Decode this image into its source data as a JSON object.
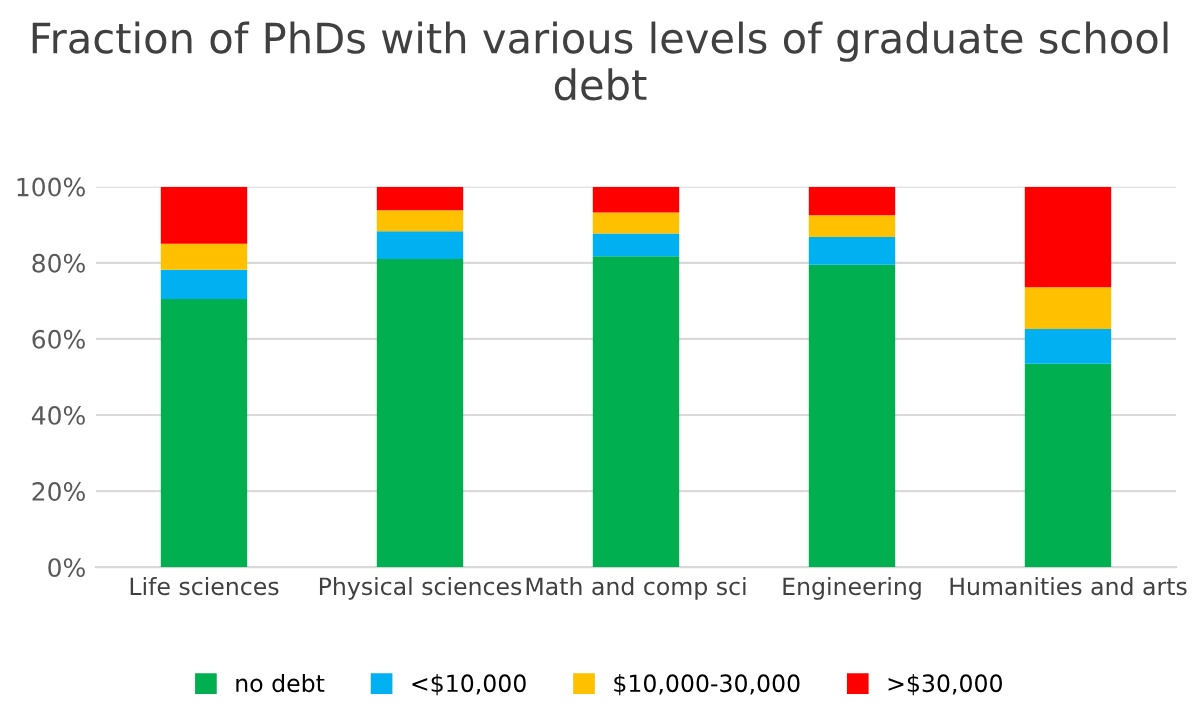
{
  "chart_data": {
    "type": "bar",
    "title": "Fraction of PhDs with various levels of graduate school debt",
    "stacked": true,
    "categories": [
      "Life sciences",
      "Physical sciences",
      "Math and comp sci",
      "Engineering",
      "Humanities and arts"
    ],
    "series": [
      {
        "name": "no debt",
        "color": "#00b050",
        "values": [
          70.5,
          81,
          81.7,
          79.5,
          53.5
        ]
      },
      {
        "name": "<$10,000",
        "color": "#00b0f0",
        "values": [
          7.7,
          7.3,
          6,
          7.3,
          9.1
        ]
      },
      {
        "name": "$10,000-30,000",
        "color": "#ffc000",
        "values": [
          6.8,
          5.5,
          5.5,
          5.7,
          11
        ]
      },
      {
        "name": ">$30,000",
        "color": "#ff0000",
        "values": [
          15,
          6.2,
          6.8,
          7.5,
          26.4
        ]
      }
    ],
    "ylim": [
      0,
      100
    ],
    "yticks": [
      {
        "value": 0,
        "label": "0%"
      },
      {
        "value": 20,
        "label": "20%"
      },
      {
        "value": 40,
        "label": "40%"
      },
      {
        "value": 60,
        "label": "60%"
      },
      {
        "value": 80,
        "label": "80%"
      },
      {
        "value": 100,
        "label": "100%"
      }
    ],
    "grid": "y",
    "legend": "bottom"
  }
}
